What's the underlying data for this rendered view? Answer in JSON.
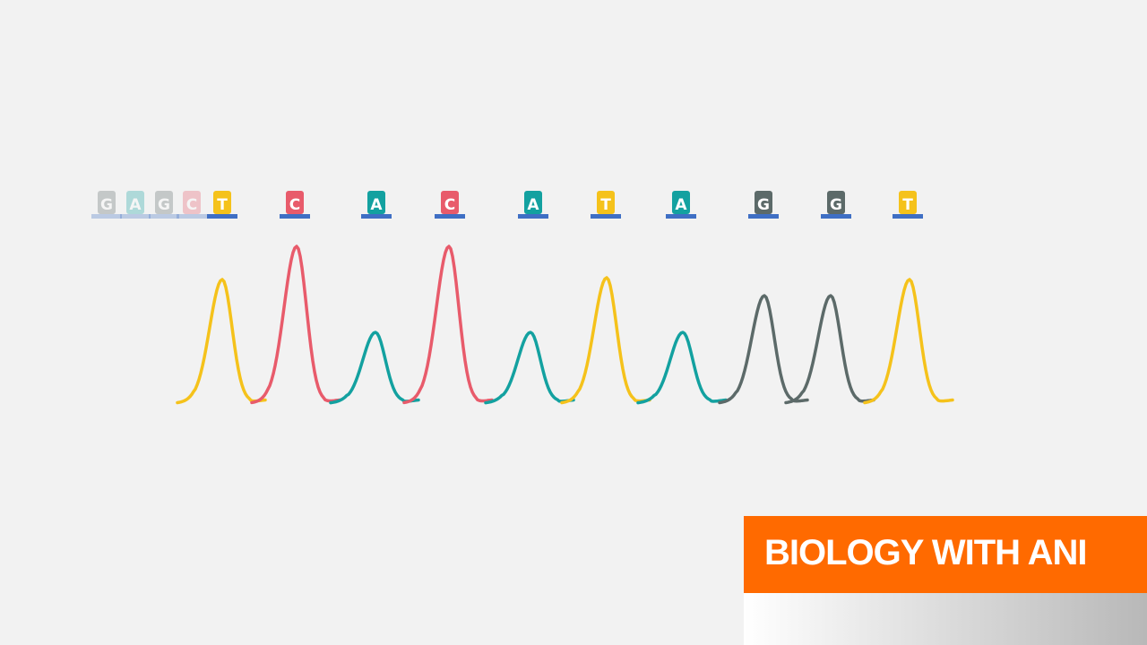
{
  "faded_bases": [
    "G",
    "A",
    "G",
    "C"
  ],
  "bases": [
    "T",
    "C",
    "A",
    "C",
    "A",
    "T",
    "A",
    "G",
    "G",
    "T"
  ],
  "colors": {
    "T": "#f5c21b",
    "C": "#e85b6b",
    "A": "#13a1a0",
    "G": "#5c6a69"
  },
  "brand": "BIOLOGY WITH ANI"
}
